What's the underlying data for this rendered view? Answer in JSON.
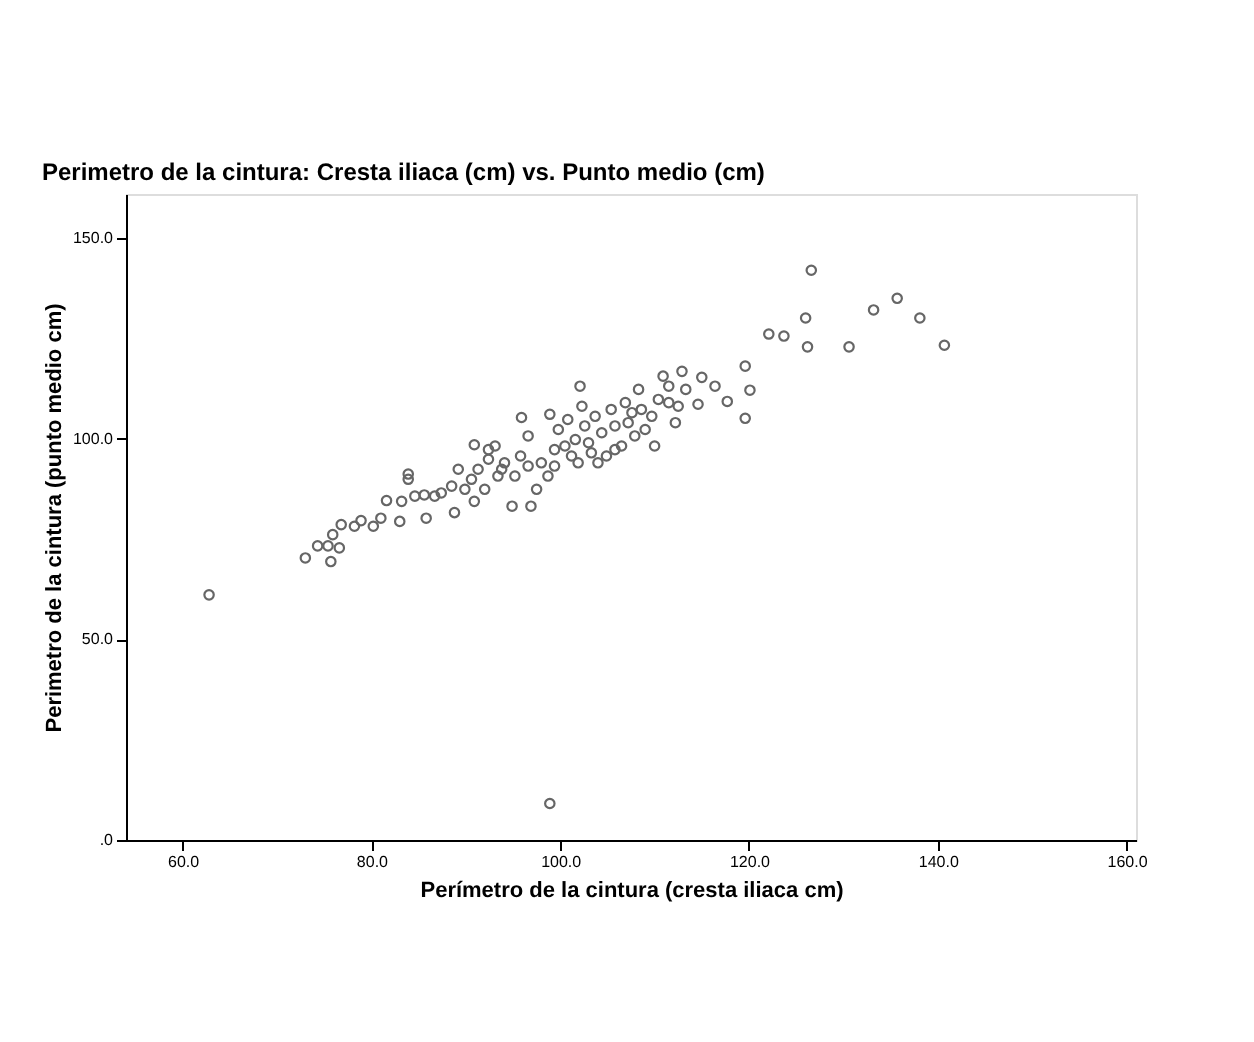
{
  "chart_data": {
    "type": "scatter",
    "title": "Perimetro de la cintura: Cresta iliaca (cm) vs. Punto medio (cm)",
    "xlabel": "Perímetro de la cintura (cresta iliaca cm)",
    "ylabel": "Perimetro de la cintura (punto medio cm)",
    "xlim": [
      54,
      161
    ],
    "ylim": [
      0,
      161
    ],
    "xticks": [
      {
        "value": 60,
        "label": "60.0"
      },
      {
        "value": 80,
        "label": "80.0"
      },
      {
        "value": 100,
        "label": "100.0"
      },
      {
        "value": 120,
        "label": "120.0"
      },
      {
        "value": 140,
        "label": "140.0"
      },
      {
        "value": 160,
        "label": "160.0"
      }
    ],
    "yticks": [
      {
        "value": 0,
        "label": ".0"
      },
      {
        "value": 50,
        "label": "50.0"
      },
      {
        "value": 100,
        "label": "100.0"
      },
      {
        "value": 150,
        "label": "150.0"
      }
    ],
    "grid": false,
    "marker": "circle",
    "series": [
      {
        "color": "#666666",
        "x": [
          62.8,
          98.9,
          126.6,
          126.0,
          126.2,
          122.1,
          123.7,
          130.6,
          133.2,
          135.7,
          138.1,
          140.7,
          119.6,
          120.1,
          119.6,
          73.0,
          74.3,
          75.7,
          75.4,
          76.6,
          75.9,
          76.8,
          78.2,
          78.9,
          80.2,
          81.0,
          81.6,
          83.0,
          83.2,
          83.9,
          83.9,
          84.6,
          85.8,
          85.6,
          86.7,
          87.4,
          88.8,
          88.5,
          89.2,
          89.9,
          90.6,
          90.9,
          91.3,
          90.9,
          92.0,
          92.4,
          93.1,
          93.4,
          94.1,
          94.9,
          95.2,
          95.9,
          95.8,
          96.6,
          96.9,
          97.5,
          98.0,
          98.9,
          98.7,
          99.4,
          99.8,
          100.5,
          100.8,
          101.6,
          102.1,
          101.9,
          102.3,
          102.6,
          103.0,
          103.7,
          104.0,
          104.4,
          104.9,
          105.4,
          105.8,
          106.5,
          106.9,
          107.2,
          107.9,
          108.3,
          108.6,
          109.0,
          110.0,
          110.4,
          110.9,
          111.5,
          112.2,
          112.5,
          112.9,
          113.3,
          114.6,
          115.0,
          116.4,
          117.7,
          92.4,
          93.8,
          96.6,
          99.4,
          101.2,
          103.3,
          105.8,
          107.6,
          109.7,
          111.5
        ],
        "values": [
          61.1,
          9.1,
          142.0,
          130.1,
          122.9,
          126.1,
          125.6,
          122.9,
          132.1,
          135.0,
          130.1,
          123.3,
          118.1,
          112.1,
          105.1,
          70.3,
          73.3,
          69.4,
          73.3,
          72.8,
          76.1,
          78.6,
          78.2,
          79.6,
          78.2,
          80.2,
          84.6,
          79.4,
          84.4,
          91.2,
          89.9,
          85.7,
          80.2,
          86.0,
          85.7,
          86.5,
          81.6,
          88.2,
          92.4,
          87.4,
          89.9,
          84.4,
          92.4,
          98.5,
          87.4,
          94.9,
          98.2,
          90.7,
          94.0,
          83.2,
          90.7,
          105.3,
          95.7,
          100.7,
          83.2,
          87.4,
          94.0,
          106.1,
          90.7,
          97.3,
          102.3,
          98.2,
          104.8,
          99.8,
          113.1,
          94.0,
          108.1,
          103.2,
          99.0,
          105.6,
          94.0,
          101.5,
          95.7,
          107.3,
          103.2,
          98.2,
          109.0,
          104.0,
          100.7,
          112.3,
          107.3,
          102.3,
          98.2,
          109.8,
          115.6,
          113.1,
          104.0,
          108.1,
          116.8,
          112.3,
          108.6,
          115.3,
          113.1,
          109.3,
          97.3,
          92.4,
          93.2,
          93.2,
          95.7,
          96.5,
          97.3,
          106.5,
          105.6,
          109.0
        ]
      }
    ]
  }
}
